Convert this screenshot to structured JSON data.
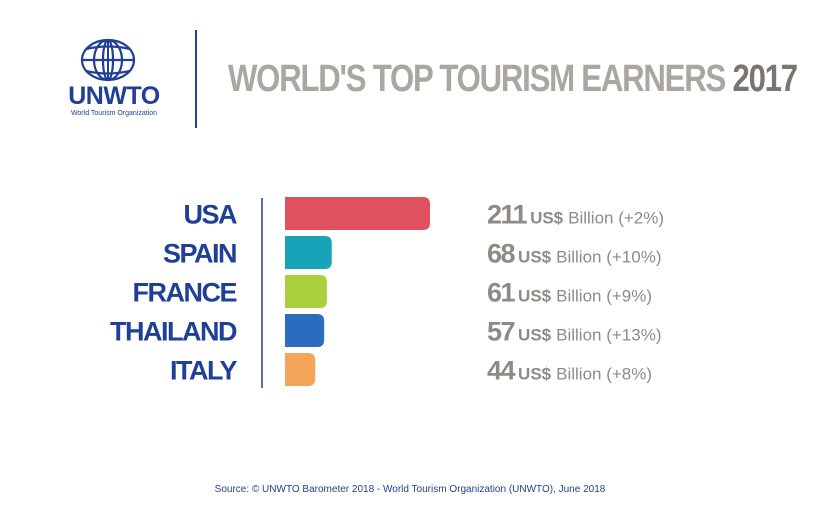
{
  "logo": {
    "icon": "un-globe-icon",
    "brand": "UNWTO",
    "subtitle": "World Tourism Organization",
    "color": "#1f3f99"
  },
  "title": {
    "main": "WORLD'S TOP TOURISM EARNERS",
    "year": "2017"
  },
  "chart_data": {
    "type": "bar",
    "orientation": "horizontal",
    "categories": [
      "USA",
      "SPAIN",
      "FRANCE",
      "THAILAND",
      "ITALY"
    ],
    "values": [
      211,
      68,
      61,
      57,
      44
    ],
    "value_labels": [
      "211",
      "68",
      "61",
      "57",
      "44"
    ],
    "unit": "US$",
    "unit_suffix": [
      "Billion (+2%)",
      "Billion (+10%)",
      "Billion (+9%)",
      "Billion (+13%)",
      "Billion (+8%)"
    ],
    "colors": [
      "#e0505e",
      "#17a3b8",
      "#a9cf3d",
      "#2a6dbf",
      "#f5a55a"
    ],
    "xlim": [
      0,
      211
    ],
    "grid": false,
    "legend": "none"
  },
  "source": "Source: © UNWTO Barometer 2018 - World Tourism Organization (UNWTO), June 2018"
}
